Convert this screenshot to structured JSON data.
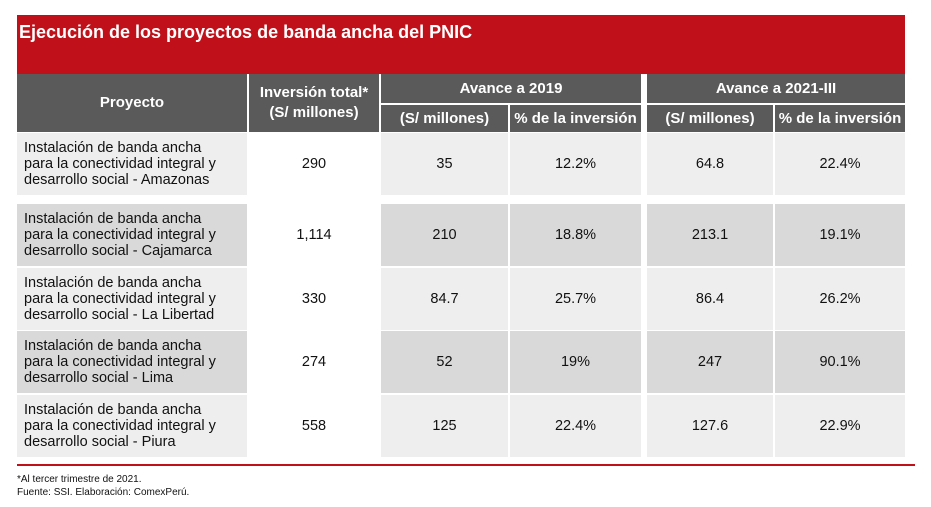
{
  "title": "Ejecución de los proyectos de banda ancha del PNIC",
  "chart_data": {
    "type": "table",
    "columns": {
      "project": "Proyecto",
      "total_line1": "Inversión total*",
      "total_line2": "(S/ millones)",
      "group2019": "Avance a 2019",
      "group2021": "Avance a 2021-III",
      "sub_millones": "(S/ millones)",
      "sub_pct": "% de la inversión"
    },
    "rows": [
      {
        "p1": "Instalación de banda ancha",
        "p2": "para la conectividad integral y",
        "p3": "desarrollo social - Amazonas",
        "total": "290",
        "m2019": "35",
        "pct2019": "12.2%",
        "m2021": "64.8",
        "pct2021": "22.4%"
      },
      {
        "p1": "Instalación de banda ancha",
        "p2": "para la conectividad integral y",
        "p3": "desarrollo social - Cajamarca",
        "total": "1,114",
        "m2019": "210",
        "pct2019": "18.8%",
        "m2021": "213.1",
        "pct2021": "19.1%"
      },
      {
        "p1": "Instalación de banda ancha",
        "p2": "para la conectividad integral y",
        "p3": "desarrollo social - La Libertad",
        "total": "330",
        "m2019": "84.7",
        "pct2019": "25.7%",
        "m2021": "86.4",
        "pct2021": "26.2%"
      },
      {
        "p1": "Instalación de banda ancha",
        "p2": "para la conectividad integral y",
        "p3": "desarrollo social - Lima",
        "total": "274",
        "m2019": "52",
        "pct2019": "19%",
        "m2021": "247",
        "pct2021": "90.1%"
      },
      {
        "p1": "Instalación de banda ancha",
        "p2": "para la conectividad integral y",
        "p3": "desarrollo social - Piura",
        "total": "558",
        "m2019": "125",
        "pct2019": "22.4%",
        "m2021": "127.6",
        "pct2021": "22.9%"
      }
    ]
  },
  "notes": {
    "line1": "*Al tercer trimestre de 2021.",
    "line2": "Fuente: SSI. Elaboración: ComexPerú."
  }
}
